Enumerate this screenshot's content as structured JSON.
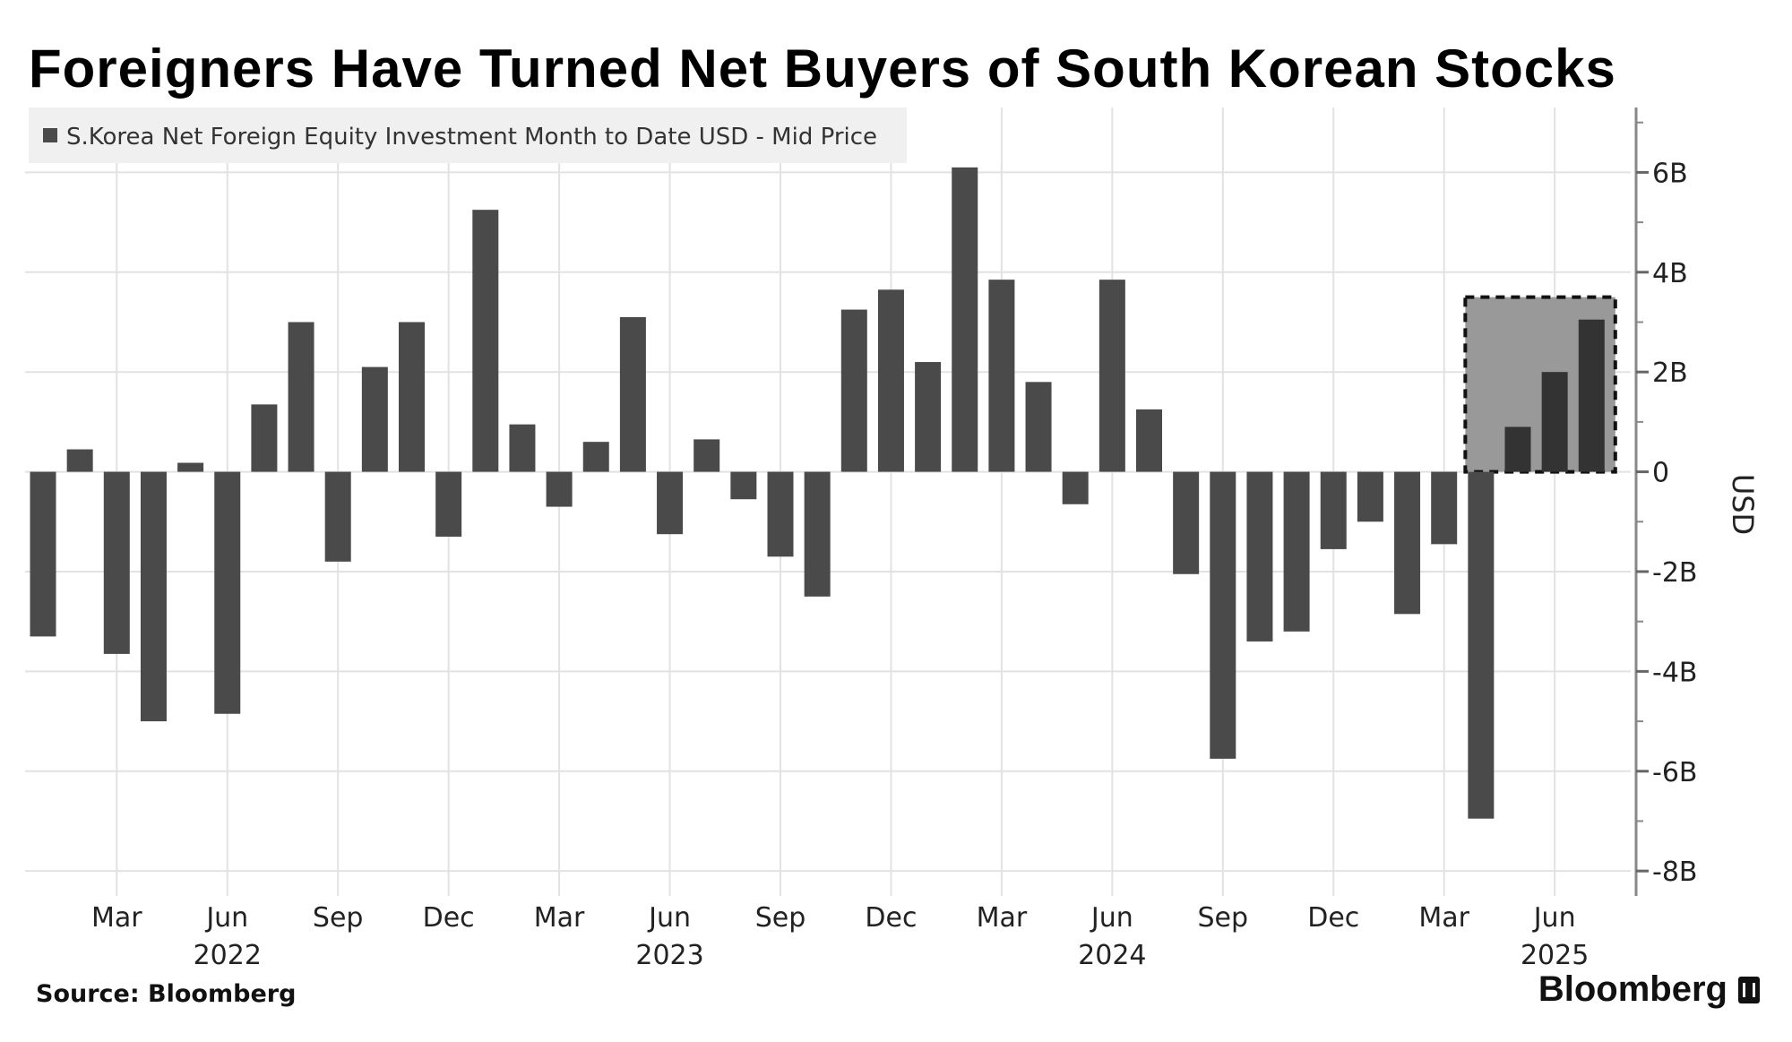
{
  "title": "Foreigners Have Turned Net Buyers of South Korean Stocks",
  "source": "Source: Bloomberg",
  "brand": "Bloomberg",
  "colors": {
    "bar": "#4a4a4a",
    "highlight_bar": "#333333",
    "highlight_box": "#999999",
    "grid": "#e2e2e2"
  },
  "chart_data": {
    "type": "bar",
    "legend": [
      "S.Korea Net Foreign Equity Investment Month to Date USD - Mid Price"
    ],
    "legend_position": "top-left",
    "ylabel": "USD",
    "y_axis_side": "right",
    "ylim": [
      -8.5,
      7.3
    ],
    "yticks": [
      6,
      4,
      2,
      0,
      -2,
      -4,
      -6,
      -8
    ],
    "ytick_labels": [
      "6B",
      "4B",
      "2B",
      "0",
      "-2B",
      "-4B",
      "-6B",
      "-8B"
    ],
    "grid": true,
    "categories": [
      "2022-01",
      "2022-02",
      "2022-03",
      "2022-04",
      "2022-05",
      "2022-06",
      "2022-07",
      "2022-08",
      "2022-09",
      "2022-10",
      "2022-11",
      "2022-12",
      "2023-01",
      "2023-02",
      "2023-03",
      "2023-04",
      "2023-05",
      "2023-06",
      "2023-07",
      "2023-08",
      "2023-09",
      "2023-10",
      "2023-11",
      "2023-12",
      "2024-01",
      "2024-02",
      "2024-03",
      "2024-04",
      "2024-05",
      "2024-06",
      "2024-07",
      "2024-08",
      "2024-09",
      "2024-10",
      "2024-11",
      "2024-12",
      "2025-01",
      "2025-02",
      "2025-03",
      "2025-04",
      "2025-05",
      "2025-06",
      "2025-07"
    ],
    "values": [
      -3.3,
      0.45,
      -3.65,
      -5.0,
      0.18,
      -4.85,
      1.35,
      3.0,
      -1.8,
      2.1,
      3.0,
      -1.3,
      5.25,
      0.95,
      -0.7,
      0.6,
      3.1,
      -1.25,
      0.65,
      -0.55,
      -1.7,
      -2.5,
      3.25,
      3.65,
      2.2,
      6.1,
      3.85,
      1.8,
      -0.65,
      3.85,
      1.25,
      -2.05,
      -5.75,
      -3.4,
      -3.2,
      -1.55,
      -1.0,
      -2.85,
      -1.45,
      -6.95,
      0.9,
      2.0,
      3.05
    ],
    "highlight": {
      "from_index": 39,
      "to_index": 42,
      "top": 3.5,
      "bottom": 0
    },
    "x_month_ticks": [
      {
        "index": 2,
        "label": "Mar"
      },
      {
        "index": 5,
        "label": "Jun"
      },
      {
        "index": 8,
        "label": "Sep"
      },
      {
        "index": 11,
        "label": "Dec"
      },
      {
        "index": 14,
        "label": "Mar"
      },
      {
        "index": 17,
        "label": "Jun"
      },
      {
        "index": 20,
        "label": "Sep"
      },
      {
        "index": 23,
        "label": "Dec"
      },
      {
        "index": 26,
        "label": "Mar"
      },
      {
        "index": 29,
        "label": "Jun"
      },
      {
        "index": 32,
        "label": "Sep"
      },
      {
        "index": 35,
        "label": "Dec"
      },
      {
        "index": 38,
        "label": "Mar"
      },
      {
        "index": 41,
        "label": "Jun"
      }
    ],
    "x_year_labels": [
      {
        "index": 5,
        "label": "2022"
      },
      {
        "index": 17,
        "label": "2023"
      },
      {
        "index": 29,
        "label": "2024"
      },
      {
        "index": 41,
        "label": "2025"
      }
    ]
  }
}
